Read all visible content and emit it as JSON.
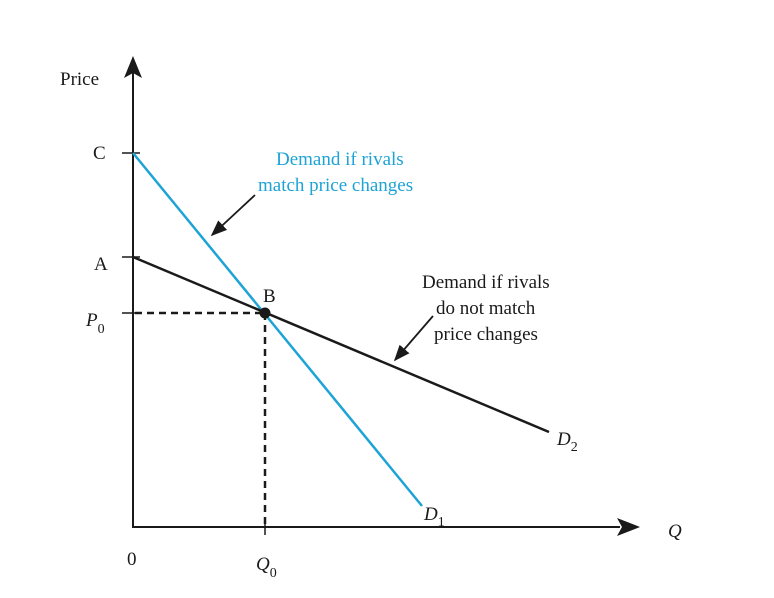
{
  "colors": {
    "blue_curve": "#1ea3d6",
    "black_curve": "#1a1a1a",
    "axis": "#1a1a1a"
  },
  "axes": {
    "y_label": "Price",
    "x_label": "Q",
    "origin_label": "0",
    "y_ticks": {
      "c": "C",
      "a": "A",
      "p0_main": "P",
      "p0_sub": "0"
    },
    "x_ticks": {
      "q0_main": "Q",
      "q0_sub": "0"
    }
  },
  "points": {
    "b": "B"
  },
  "curves": {
    "d1": {
      "main": "D",
      "sub": "1"
    },
    "d2": {
      "main": "D",
      "sub": "2"
    }
  },
  "annotations": {
    "blue_line1": "Demand if rivals",
    "blue_line2": "match price changes",
    "black_line1": "Demand if rivals",
    "black_line2": "do not match",
    "black_line3": "price changes"
  }
}
